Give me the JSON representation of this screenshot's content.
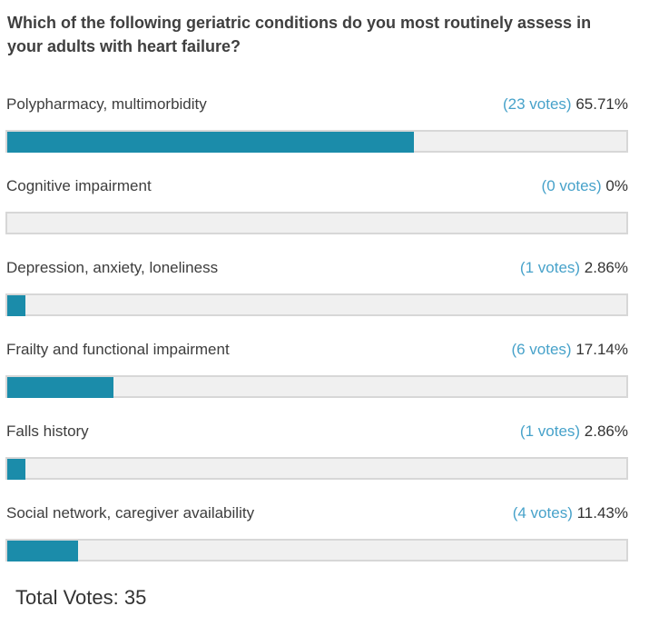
{
  "poll": {
    "question": "Which of the following geriatric conditions do you most routinely assess in your adults with heart failure?",
    "options": [
      {
        "label": "Polypharmacy, multimorbidity",
        "votes_label": "(23 votes)",
        "percent_label": "65.71%",
        "percent": 65.71
      },
      {
        "label": "Cognitive impairment",
        "votes_label": "(0 votes)",
        "percent_label": "0%",
        "percent": 0
      },
      {
        "label": "Depression, anxiety, loneliness",
        "votes_label": "(1 votes)",
        "percent_label": "2.86%",
        "percent": 2.86
      },
      {
        "label": "Frailty and functional impairment",
        "votes_label": "(6 votes)",
        "percent_label": "17.14%",
        "percent": 17.14
      },
      {
        "label": "Falls history",
        "votes_label": "(1 votes)",
        "percent_label": "2.86%",
        "percent": 2.86
      },
      {
        "label": "Social network, caregiver availability",
        "votes_label": "(4 votes)",
        "percent_label": "11.43%",
        "percent": 11.43
      }
    ],
    "total_votes_label": "Total Votes: 35",
    "colors": {
      "bar_fill": "#1b8caa",
      "bar_track": "#f0f0f0",
      "bar_border": "#d7d7d7",
      "votes_text": "#47a2ca",
      "percent_text": "#333333",
      "label_text": "#3d3d3d",
      "title_text": "#3f3f3f"
    }
  },
  "chart_data": {
    "type": "bar",
    "orientation": "horizontal",
    "title": "Which of the following geriatric conditions do you most routinely assess in your adults with heart failure?",
    "categories": [
      "Polypharmacy, multimorbidity",
      "Cognitive impairment",
      "Depression, anxiety, loneliness",
      "Frailty and functional impairment",
      "Falls history",
      "Social network, caregiver availability"
    ],
    "series": [
      {
        "name": "votes",
        "values": [
          23,
          0,
          1,
          6,
          1,
          4
        ]
      },
      {
        "name": "percent",
        "values": [
          65.71,
          0,
          2.86,
          17.14,
          2.86,
          11.43
        ]
      }
    ],
    "total_votes": 35,
    "xlabel": "",
    "ylabel": "",
    "xlim": [
      0,
      100
    ],
    "grid": false,
    "legend": false
  }
}
